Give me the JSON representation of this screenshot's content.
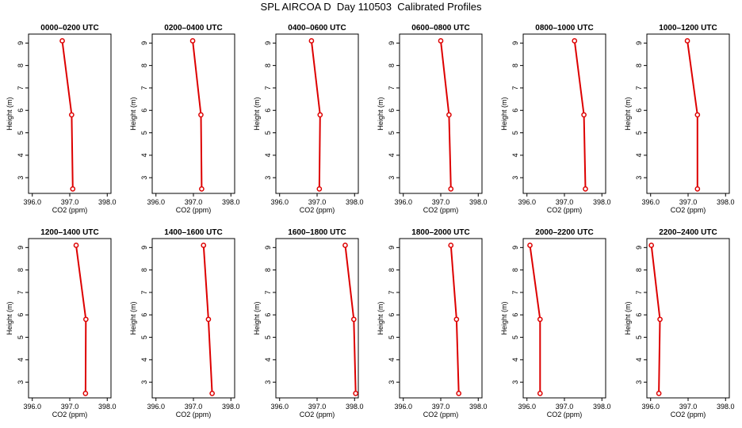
{
  "title": "SPL AIRCOA D  Day 110503  Calibrated Profiles",
  "chart_data": [
    {
      "type": "line",
      "title": "0000–0200 UTC",
      "xlabel": "CO2 (ppm)",
      "ylabel": "Height (m)",
      "xlim": [
        395.9,
        398.1
      ],
      "ylim": [
        2.3,
        9.4
      ],
      "x": [
        396.8,
        397.05,
        397.08
      ],
      "y": [
        9.1,
        5.8,
        2.5
      ],
      "xticks": [
        396.0,
        397.0,
        398.0
      ],
      "xtick_labels": [
        "396.0",
        "397.0",
        "398.0"
      ],
      "yticks": [
        3,
        4,
        5,
        6,
        7,
        8,
        9
      ],
      "ytick_labels": [
        "3",
        "4",
        "5",
        "6",
        "7",
        "8",
        "9"
      ],
      "color": "#dd0000"
    },
    {
      "type": "line",
      "title": "0200–0400 UTC",
      "xlabel": "CO2 (ppm)",
      "ylabel": "Height (m)",
      "xlim": [
        395.9,
        398.1
      ],
      "ylim": [
        2.3,
        9.4
      ],
      "x": [
        396.98,
        397.2,
        397.22
      ],
      "y": [
        9.1,
        5.8,
        2.5
      ],
      "xticks": [
        396.0,
        397.0,
        398.0
      ],
      "xtick_labels": [
        "396.0",
        "397.0",
        "398.0"
      ],
      "yticks": [
        3,
        4,
        5,
        6,
        7,
        8,
        9
      ],
      "ytick_labels": [
        "3",
        "4",
        "5",
        "6",
        "7",
        "8",
        "9"
      ],
      "color": "#dd0000"
    },
    {
      "type": "line",
      "title": "0400–0600 UTC",
      "xlabel": "CO2 (ppm)",
      "ylabel": "Height (m)",
      "xlim": [
        395.9,
        398.1
      ],
      "ylim": [
        2.3,
        9.4
      ],
      "x": [
        396.85,
        397.08,
        397.06
      ],
      "y": [
        9.1,
        5.8,
        2.5
      ],
      "xticks": [
        396.0,
        397.0,
        398.0
      ],
      "xtick_labels": [
        "396.0",
        "397.0",
        "398.0"
      ],
      "yticks": [
        3,
        4,
        5,
        6,
        7,
        8,
        9
      ],
      "ytick_labels": [
        "3",
        "4",
        "5",
        "6",
        "7",
        "8",
        "9"
      ],
      "color": "#dd0000"
    },
    {
      "type": "line",
      "title": "0600–0800 UTC",
      "xlabel": "CO2 (ppm)",
      "ylabel": "Height (m)",
      "xlim": [
        395.9,
        398.1
      ],
      "ylim": [
        2.3,
        9.4
      ],
      "x": [
        397.0,
        397.22,
        397.27
      ],
      "y": [
        9.1,
        5.8,
        2.5
      ],
      "xticks": [
        396.0,
        397.0,
        398.0
      ],
      "xtick_labels": [
        "396.0",
        "397.0",
        "398.0"
      ],
      "yticks": [
        3,
        4,
        5,
        6,
        7,
        8,
        9
      ],
      "ytick_labels": [
        "3",
        "4",
        "5",
        "6",
        "7",
        "8",
        "9"
      ],
      "color": "#dd0000"
    },
    {
      "type": "line",
      "title": "0800–1000 UTC",
      "xlabel": "CO2 (ppm)",
      "ylabel": "Height (m)",
      "xlim": [
        395.9,
        398.1
      ],
      "ylim": [
        2.3,
        9.4
      ],
      "x": [
        397.27,
        397.52,
        397.56
      ],
      "y": [
        9.1,
        5.8,
        2.5
      ],
      "xticks": [
        396.0,
        397.0,
        398.0
      ],
      "xtick_labels": [
        "396.0",
        "397.0",
        "398.0"
      ],
      "yticks": [
        3,
        4,
        5,
        6,
        7,
        8,
        9
      ],
      "ytick_labels": [
        "3",
        "4",
        "5",
        "6",
        "7",
        "8",
        "9"
      ],
      "color": "#dd0000"
    },
    {
      "type": "line",
      "title": "1000–1200 UTC",
      "xlabel": "CO2 (ppm)",
      "ylabel": "Height (m)",
      "xlim": [
        395.9,
        398.1
      ],
      "ylim": [
        2.3,
        9.4
      ],
      "x": [
        396.98,
        397.25,
        397.25
      ],
      "y": [
        9.1,
        5.8,
        2.5
      ],
      "xticks": [
        396.0,
        397.0,
        398.0
      ],
      "xtick_labels": [
        "396.0",
        "397.0",
        "398.0"
      ],
      "yticks": [
        3,
        4,
        5,
        6,
        7,
        8,
        9
      ],
      "ytick_labels": [
        "3",
        "4",
        "5",
        "6",
        "7",
        "8",
        "9"
      ],
      "color": "#dd0000"
    },
    {
      "type": "line",
      "title": "1200–1400 UTC",
      "xlabel": "CO2 (ppm)",
      "ylabel": "Height (m)",
      "xlim": [
        395.9,
        398.1
      ],
      "ylim": [
        2.3,
        9.4
      ],
      "x": [
        397.17,
        397.43,
        397.42
      ],
      "y": [
        9.1,
        5.8,
        2.5
      ],
      "xticks": [
        396.0,
        397.0,
        398.0
      ],
      "xtick_labels": [
        "396.0",
        "397.0",
        "398.0"
      ],
      "yticks": [
        3,
        4,
        5,
        6,
        7,
        8,
        9
      ],
      "ytick_labels": [
        "3",
        "4",
        "5",
        "6",
        "7",
        "8",
        "9"
      ],
      "color": "#dd0000"
    },
    {
      "type": "line",
      "title": "1400–1600 UTC",
      "xlabel": "CO2 (ppm)",
      "ylabel": "Height (m)",
      "xlim": [
        395.9,
        398.1
      ],
      "ylim": [
        2.3,
        9.4
      ],
      "x": [
        397.27,
        397.4,
        397.5
      ],
      "y": [
        9.1,
        5.8,
        2.5
      ],
      "xticks": [
        396.0,
        397.0,
        398.0
      ],
      "xtick_labels": [
        "396.0",
        "397.0",
        "398.0"
      ],
      "yticks": [
        3,
        4,
        5,
        6,
        7,
        8,
        9
      ],
      "ytick_labels": [
        "3",
        "4",
        "5",
        "6",
        "7",
        "8",
        "9"
      ],
      "color": "#dd0000"
    },
    {
      "type": "line",
      "title": "1600–1800 UTC",
      "xlabel": "CO2 (ppm)",
      "ylabel": "Height (m)",
      "xlim": [
        395.9,
        398.1
      ],
      "ylim": [
        2.3,
        9.4
      ],
      "x": [
        397.75,
        397.98,
        398.03
      ],
      "y": [
        9.1,
        5.8,
        2.5
      ],
      "xticks": [
        396.0,
        397.0,
        398.0
      ],
      "xtick_labels": [
        "396.0",
        "397.0",
        "398.0"
      ],
      "yticks": [
        3,
        4,
        5,
        6,
        7,
        8,
        9
      ],
      "ytick_labels": [
        "3",
        "4",
        "5",
        "6",
        "7",
        "8",
        "9"
      ],
      "color": "#dd0000"
    },
    {
      "type": "line",
      "title": "1800–2000 UTC",
      "xlabel": "CO2 (ppm)",
      "ylabel": "Height (m)",
      "xlim": [
        395.9,
        398.1
      ],
      "ylim": [
        2.3,
        9.4
      ],
      "x": [
        397.27,
        397.42,
        397.48
      ],
      "y": [
        9.1,
        5.8,
        2.5
      ],
      "xticks": [
        396.0,
        397.0,
        398.0
      ],
      "xtick_labels": [
        "396.0",
        "397.0",
        "398.0"
      ],
      "yticks": [
        3,
        4,
        5,
        6,
        7,
        8,
        9
      ],
      "ytick_labels": [
        "3",
        "4",
        "5",
        "6",
        "7",
        "8",
        "9"
      ],
      "color": "#dd0000"
    },
    {
      "type": "line",
      "title": "2000–2200 UTC",
      "xlabel": "CO2 (ppm)",
      "ylabel": "Height (m)",
      "xlim": [
        395.9,
        398.1
      ],
      "ylim": [
        2.3,
        9.4
      ],
      "x": [
        396.08,
        396.35,
        396.35
      ],
      "y": [
        9.1,
        5.8,
        2.5
      ],
      "xticks": [
        396.0,
        397.0,
        398.0
      ],
      "xtick_labels": [
        "396.0",
        "397.0",
        "398.0"
      ],
      "yticks": [
        3,
        4,
        5,
        6,
        7,
        8,
        9
      ],
      "ytick_labels": [
        "3",
        "4",
        "5",
        "6",
        "7",
        "8",
        "9"
      ],
      "color": "#dd0000"
    },
    {
      "type": "line",
      "title": "2200–2400 UTC",
      "xlabel": "CO2 (ppm)",
      "ylabel": "Height (m)",
      "xlim": [
        395.9,
        398.1
      ],
      "ylim": [
        2.3,
        9.4
      ],
      "x": [
        396.02,
        396.25,
        396.22
      ],
      "y": [
        9.1,
        5.8,
        2.5
      ],
      "xticks": [
        396.0,
        397.0,
        398.0
      ],
      "xtick_labels": [
        "396.0",
        "397.0",
        "398.0"
      ],
      "yticks": [
        3,
        4,
        5,
        6,
        7,
        8,
        9
      ],
      "ytick_labels": [
        "3",
        "4",
        "5",
        "6",
        "7",
        "8",
        "9"
      ],
      "color": "#dd0000"
    }
  ]
}
